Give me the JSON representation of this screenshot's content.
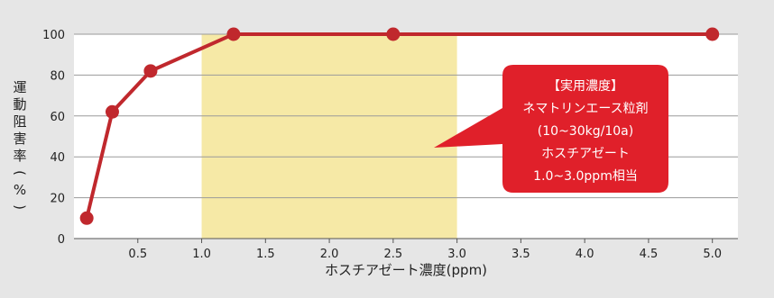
{
  "chart_data": {
    "type": "line",
    "title": "",
    "xlabel": "ホスチアゼート濃度(ppm)",
    "ylabel_chars": [
      "運",
      "動",
      "阻",
      "害",
      "率",
      "(",
      "%",
      ")"
    ],
    "xlim": [
      0,
      5.2
    ],
    "ylim": [
      0,
      100
    ],
    "xticks": [
      0.5,
      1.0,
      1.5,
      2.0,
      2.5,
      3.0,
      3.5,
      4.0,
      4.5,
      5.0
    ],
    "xtick_labels": [
      "0.5",
      "1.0",
      "1.5",
      "2.0",
      "2.5",
      "3.0",
      "3.5",
      "4.0",
      "4.5",
      "5.0"
    ],
    "yticks": [
      0,
      20,
      40,
      60,
      80,
      100
    ],
    "ytick_labels": [
      "0",
      "20",
      "40",
      "60",
      "80",
      "100"
    ],
    "grid": true,
    "series": [
      {
        "x": [
          0.1,
          0.3,
          0.6,
          1.25,
          2.5,
          5.0
        ],
        "y": [
          10,
          62,
          82,
          100,
          100,
          100
        ],
        "color": "#c0282d"
      }
    ],
    "highlight_band": {
      "x_range": [
        1.0,
        3.0
      ],
      "color": "#f6e9a6"
    },
    "annotation": {
      "lines": [
        "【実用濃度】",
        "ネマトリンエース粒剤",
        "(10~30kg/10a)",
        "ホスチアゼート",
        "1.0~3.0ppm相当"
      ],
      "color": "#e0202a"
    }
  }
}
